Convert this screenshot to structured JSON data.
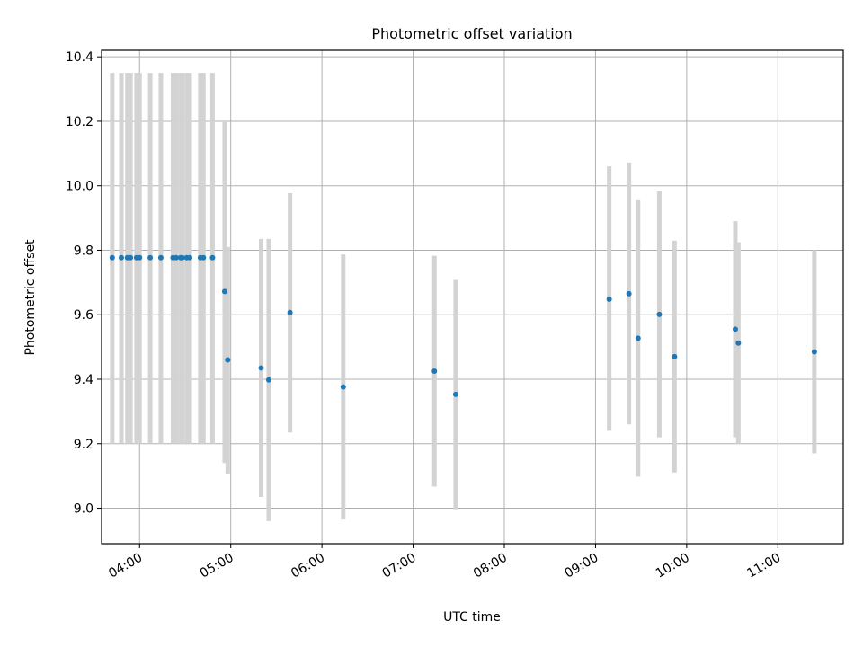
{
  "chart_data": {
    "type": "scatter",
    "title": "Photometric offset variation",
    "xlabel": "UTC time",
    "ylabel": "Photometric offset",
    "xlim": [
      "03:35",
      "11:43"
    ],
    "ylim": [
      8.89,
      10.42
    ],
    "grid": true,
    "x_ticks": [
      "04:00",
      "05:00",
      "06:00",
      "07:00",
      "08:00",
      "09:00",
      "10:00",
      "11:00"
    ],
    "y_ticks": [
      9.0,
      9.2,
      9.4,
      9.6,
      9.8,
      10.0,
      10.2,
      10.4
    ],
    "errorbar_color": "#d3d3d3",
    "marker_color": "#1f77b4",
    "points": [
      {
        "x": "03:42",
        "y": 9.777,
        "lo": 9.2,
        "hi": 10.35
      },
      {
        "x": "03:48",
        "y": 9.777,
        "lo": 9.2,
        "hi": 10.35
      },
      {
        "x": "03:52",
        "y": 9.777,
        "lo": 9.2,
        "hi": 10.35
      },
      {
        "x": "03:54",
        "y": 9.777,
        "lo": 9.2,
        "hi": 10.35
      },
      {
        "x": "03:58",
        "y": 9.777,
        "lo": 9.2,
        "hi": 10.35
      },
      {
        "x": "04:00",
        "y": 9.777,
        "lo": 9.2,
        "hi": 10.35
      },
      {
        "x": "04:07",
        "y": 9.777,
        "lo": 9.2,
        "hi": 10.35
      },
      {
        "x": "04:14",
        "y": 9.777,
        "lo": 9.2,
        "hi": 10.35
      },
      {
        "x": "04:22",
        "y": 9.777,
        "lo": 9.2,
        "hi": 10.35
      },
      {
        "x": "04:24",
        "y": 9.777,
        "lo": 9.2,
        "hi": 10.35
      },
      {
        "x": "04:27",
        "y": 9.777,
        "lo": 9.2,
        "hi": 10.35
      },
      {
        "x": "04:28",
        "y": 9.777,
        "lo": 9.2,
        "hi": 10.35
      },
      {
        "x": "04:31",
        "y": 9.777,
        "lo": 9.2,
        "hi": 10.35
      },
      {
        "x": "04:33",
        "y": 9.777,
        "lo": 9.2,
        "hi": 10.35
      },
      {
        "x": "04:40",
        "y": 9.777,
        "lo": 9.2,
        "hi": 10.35
      },
      {
        "x": "04:42",
        "y": 9.777,
        "lo": 9.2,
        "hi": 10.35
      },
      {
        "x": "04:48",
        "y": 9.777,
        "lo": 9.2,
        "hi": 10.35
      },
      {
        "x": "04:56",
        "y": 9.672,
        "lo": 9.14,
        "hi": 10.2
      },
      {
        "x": "04:58",
        "y": 9.46,
        "lo": 9.105,
        "hi": 9.81
      },
      {
        "x": "05:20",
        "y": 9.435,
        "lo": 9.035,
        "hi": 9.835
      },
      {
        "x": "05:25",
        "y": 9.398,
        "lo": 8.96,
        "hi": 9.835
      },
      {
        "x": "05:39",
        "y": 9.607,
        "lo": 9.235,
        "hi": 9.977
      },
      {
        "x": "06:14",
        "y": 9.376,
        "lo": 8.965,
        "hi": 9.787
      },
      {
        "x": "07:14",
        "y": 9.425,
        "lo": 9.067,
        "hi": 9.783
      },
      {
        "x": "07:28",
        "y": 9.353,
        "lo": 8.997,
        "hi": 9.708
      },
      {
        "x": "09:09",
        "y": 9.648,
        "lo": 9.24,
        "hi": 10.06
      },
      {
        "x": "09:22",
        "y": 9.665,
        "lo": 9.26,
        "hi": 10.072
      },
      {
        "x": "09:28",
        "y": 9.527,
        "lo": 9.098,
        "hi": 9.955
      },
      {
        "x": "09:42",
        "y": 9.601,
        "lo": 9.22,
        "hi": 9.983
      },
      {
        "x": "09:52",
        "y": 9.47,
        "lo": 9.111,
        "hi": 9.83
      },
      {
        "x": "10:32",
        "y": 9.555,
        "lo": 9.22,
        "hi": 9.89
      },
      {
        "x": "10:34",
        "y": 9.512,
        "lo": 9.2,
        "hi": 9.825
      },
      {
        "x": "11:24",
        "y": 9.485,
        "lo": 9.17,
        "hi": 9.8
      }
    ]
  }
}
